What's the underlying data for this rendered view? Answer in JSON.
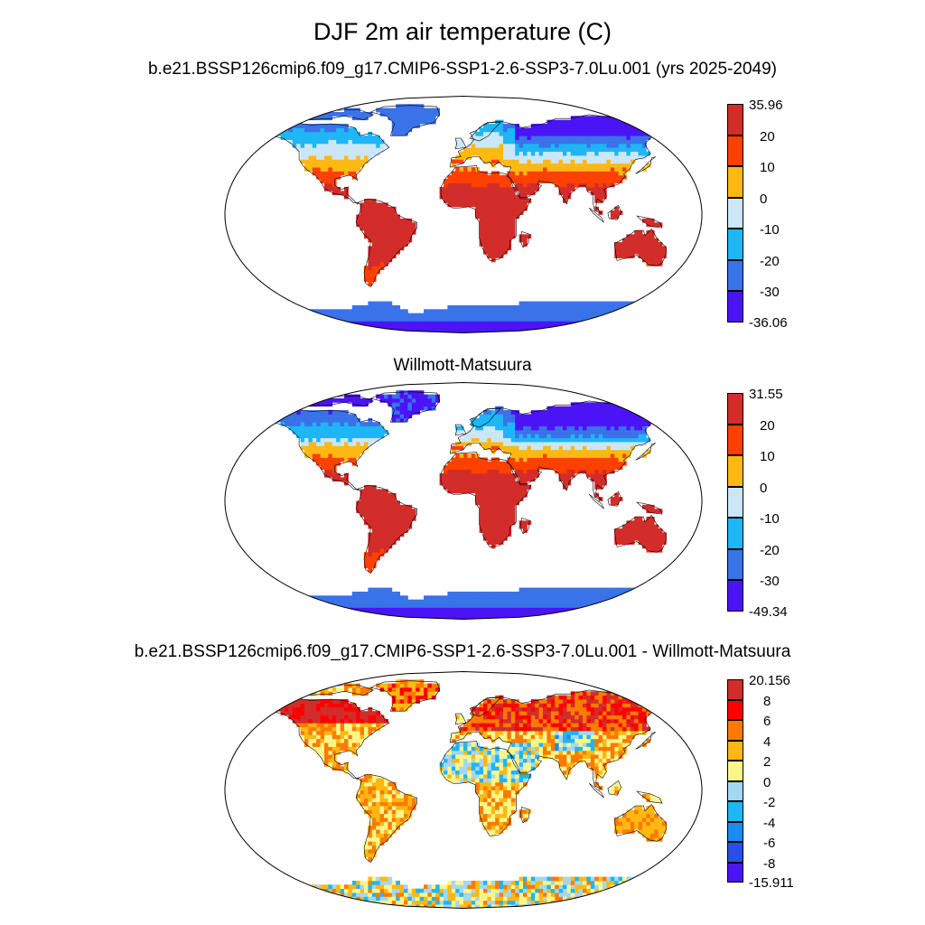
{
  "title": "DJF 2m air temperature (C)",
  "panels": [
    {
      "id": "model",
      "title": "b.e21.BSSP126cmip6.f09_g17.CMIP6-SSP1-2.6-SSP3-7.0Lu.001 (yrs 2025-2049)",
      "colorbar": {
        "labels": [
          "35.96",
          "20",
          "10",
          "0",
          "-10",
          "-20",
          "-30",
          "-36.06"
        ],
        "colors": [
          "#d22d2a",
          "#fe4000",
          "#fdb813",
          "#cbe6f7",
          "#1eb6f4",
          "#3a72e9",
          "#4a14f6"
        ]
      }
    },
    {
      "id": "obs",
      "title": "Willmott-Matsuura",
      "colorbar": {
        "labels": [
          "31.55",
          "20",
          "10",
          "0",
          "-10",
          "-20",
          "-30",
          "-49.34"
        ],
        "colors": [
          "#d22d2a",
          "#fe4000",
          "#fdb813",
          "#cbe6f7",
          "#1eb6f4",
          "#3a72e9",
          "#4a14f6"
        ]
      }
    },
    {
      "id": "diff",
      "title": "b.e21.BSSP126cmip6.f09_g17.CMIP6-SSP1-2.6-SSP3-7.0Lu.001 - Willmott-Matsuura",
      "colorbar": {
        "labels": [
          "20.156",
          "8",
          "6",
          "4",
          "2",
          "0",
          "-2",
          "-4",
          "-6",
          "-8",
          "-15.911"
        ],
        "colors": [
          "#d22d2a",
          "#fe0000",
          "#fc7a00",
          "#fdb813",
          "#fcf68a",
          "#a4d7f3",
          "#1eb6f4",
          "#1a8cf3",
          "#2a4fe8",
          "#4a14f6"
        ]
      }
    }
  ]
}
